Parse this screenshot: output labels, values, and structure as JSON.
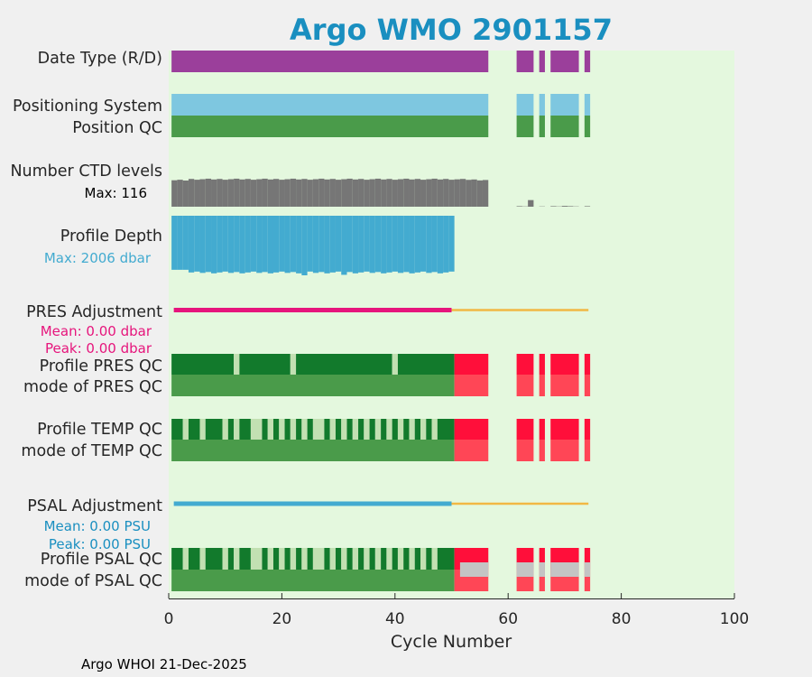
{
  "colors": {
    "plot_bg": "#e4f8de",
    "date_type": "#9b3f9b",
    "positioning": "#7ec7e0",
    "pos_qc": "#4a9b4a",
    "ctd": "#767676",
    "depth": "#43abd0",
    "pres_adj": "#e6157c",
    "adj_line": "#f1b844",
    "qc_dark": "#127a2c",
    "qc_light": "#c2e0b2",
    "mode_green": "#4a9b4a",
    "red": "#ff0f3a",
    "red_light": "#ff4656",
    "gray": "#c4c4c4",
    "psal_adj": "#43abd0",
    "title": "#1a8fc0",
    "pres_note": "#e6157c",
    "psal_note": "#1a8fc0"
  },
  "chart_data": {
    "type": "bar",
    "title": "Argo WMO 2901157",
    "xlabel": "Cycle Number",
    "xlim": [
      0,
      100
    ],
    "xticks": [
      "0",
      "20",
      "40",
      "60",
      "80",
      "100"
    ],
    "row_labels": {
      "date_type": "Date Type (R/D)",
      "positioning": "Positioning System",
      "position_qc": "Position QC",
      "ctd_levels": "Number CTD levels",
      "profile_depth": "Profile Depth",
      "pres_adjustment": "PRES Adjustment",
      "profile_pres_qc": "Profile PRES QC",
      "mode_pres_qc": "mode of PRES QC",
      "profile_temp_qc": "Profile TEMP QC",
      "mode_temp_qc": "mode of TEMP QC",
      "psal_adjustment": "PSAL Adjustment",
      "profile_psal_qc": "Profile PSAL QC",
      "mode_psal_qc": "mode of PSAL QC"
    },
    "notes": {
      "ctd_max": "Max: 116",
      "depth_max": "Max: 2006 dbar",
      "pres_mean": "Mean: 0.00 dbar",
      "pres_peak": "Peak: 0.00 dbar",
      "psal_mean": "Mean: 0.00 PSU",
      "psal_peak": "Peak: 0.00 PSU"
    },
    "cycles_present": [
      [
        1,
        56
      ],
      [
        62,
        64
      ],
      [
        66,
        66
      ],
      [
        68,
        72
      ],
      [
        74,
        74
      ]
    ],
    "cycles_adjusted_range": [
      1,
      50
    ],
    "cycles_unadjusted_range": [
      51,
      74
    ],
    "pres_qc_light_cycles": [
      12,
      22,
      40
    ],
    "temp_qc_light_cycles": [
      3,
      6,
      10,
      12,
      15,
      16,
      18,
      20,
      22,
      24,
      26,
      27,
      29,
      31,
      33,
      35,
      37,
      39,
      41,
      43,
      45,
      47
    ],
    "psal_gray_cycles": [
      52,
      53,
      54,
      55,
      56,
      62,
      63,
      64,
      66,
      68,
      69,
      70,
      71,
      72,
      74
    ],
    "ctd_levels_max": 116,
    "profile_depth_max_dbar": 2006
  },
  "footer": "Argo WHOI 21-Dec-2025"
}
